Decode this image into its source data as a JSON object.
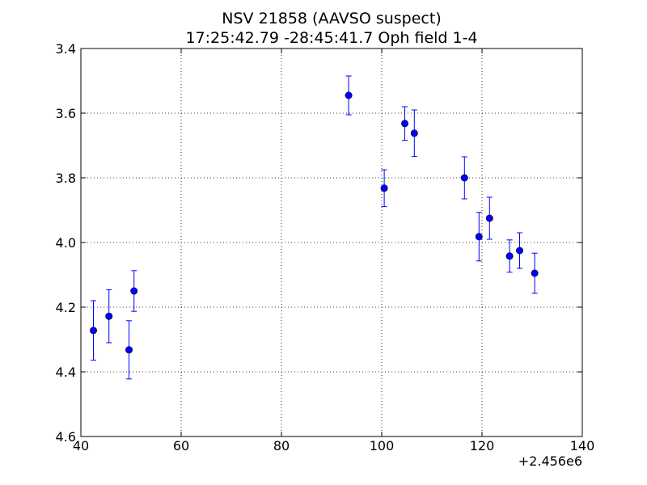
{
  "chart_data": {
    "type": "scatter",
    "title": "NSV 21858 (AAVSO suspect)",
    "subtitle": "17:25:42.79 -28:45:41.7 Oph field 1-4",
    "xlabel": "",
    "ylabel": "",
    "x_offset_label": "+2.456e6",
    "xlim": [
      40,
      140
    ],
    "ylim": [
      4.6,
      3.4
    ],
    "y_inverted": true,
    "grid": true,
    "marker_color": "#0000ff",
    "xticks": [
      40,
      60,
      80,
      100,
      120,
      140
    ],
    "xtick_labels": [
      "40",
      "60",
      "80",
      "100",
      "120",
      "140"
    ],
    "yticks": [
      3.4,
      3.6,
      3.8,
      4.0,
      4.2,
      4.4,
      4.6
    ],
    "ytick_labels": [
      "3.4",
      "3.6",
      "3.8",
      "4.0",
      "4.2",
      "4.4",
      "4.6"
    ],
    "points": [
      {
        "x": 42.5,
        "y": 4.272,
        "err": 0.092
      },
      {
        "x": 45.6,
        "y": 4.228,
        "err": 0.082
      },
      {
        "x": 49.6,
        "y": 4.332,
        "err": 0.09
      },
      {
        "x": 50.6,
        "y": 4.15,
        "err": 0.063
      },
      {
        "x": 93.4,
        "y": 3.545,
        "err": 0.06
      },
      {
        "x": 100.5,
        "y": 3.832,
        "err": 0.057
      },
      {
        "x": 104.6,
        "y": 3.632,
        "err": 0.052
      },
      {
        "x": 106.5,
        "y": 3.662,
        "err": 0.072
      },
      {
        "x": 116.5,
        "y": 3.8,
        "err": 0.065
      },
      {
        "x": 119.4,
        "y": 3.982,
        "err": 0.075
      },
      {
        "x": 121.5,
        "y": 3.925,
        "err": 0.065
      },
      {
        "x": 125.5,
        "y": 4.042,
        "err": 0.05
      },
      {
        "x": 127.5,
        "y": 4.025,
        "err": 0.055
      },
      {
        "x": 130.5,
        "y": 4.095,
        "err": 0.062
      }
    ]
  }
}
